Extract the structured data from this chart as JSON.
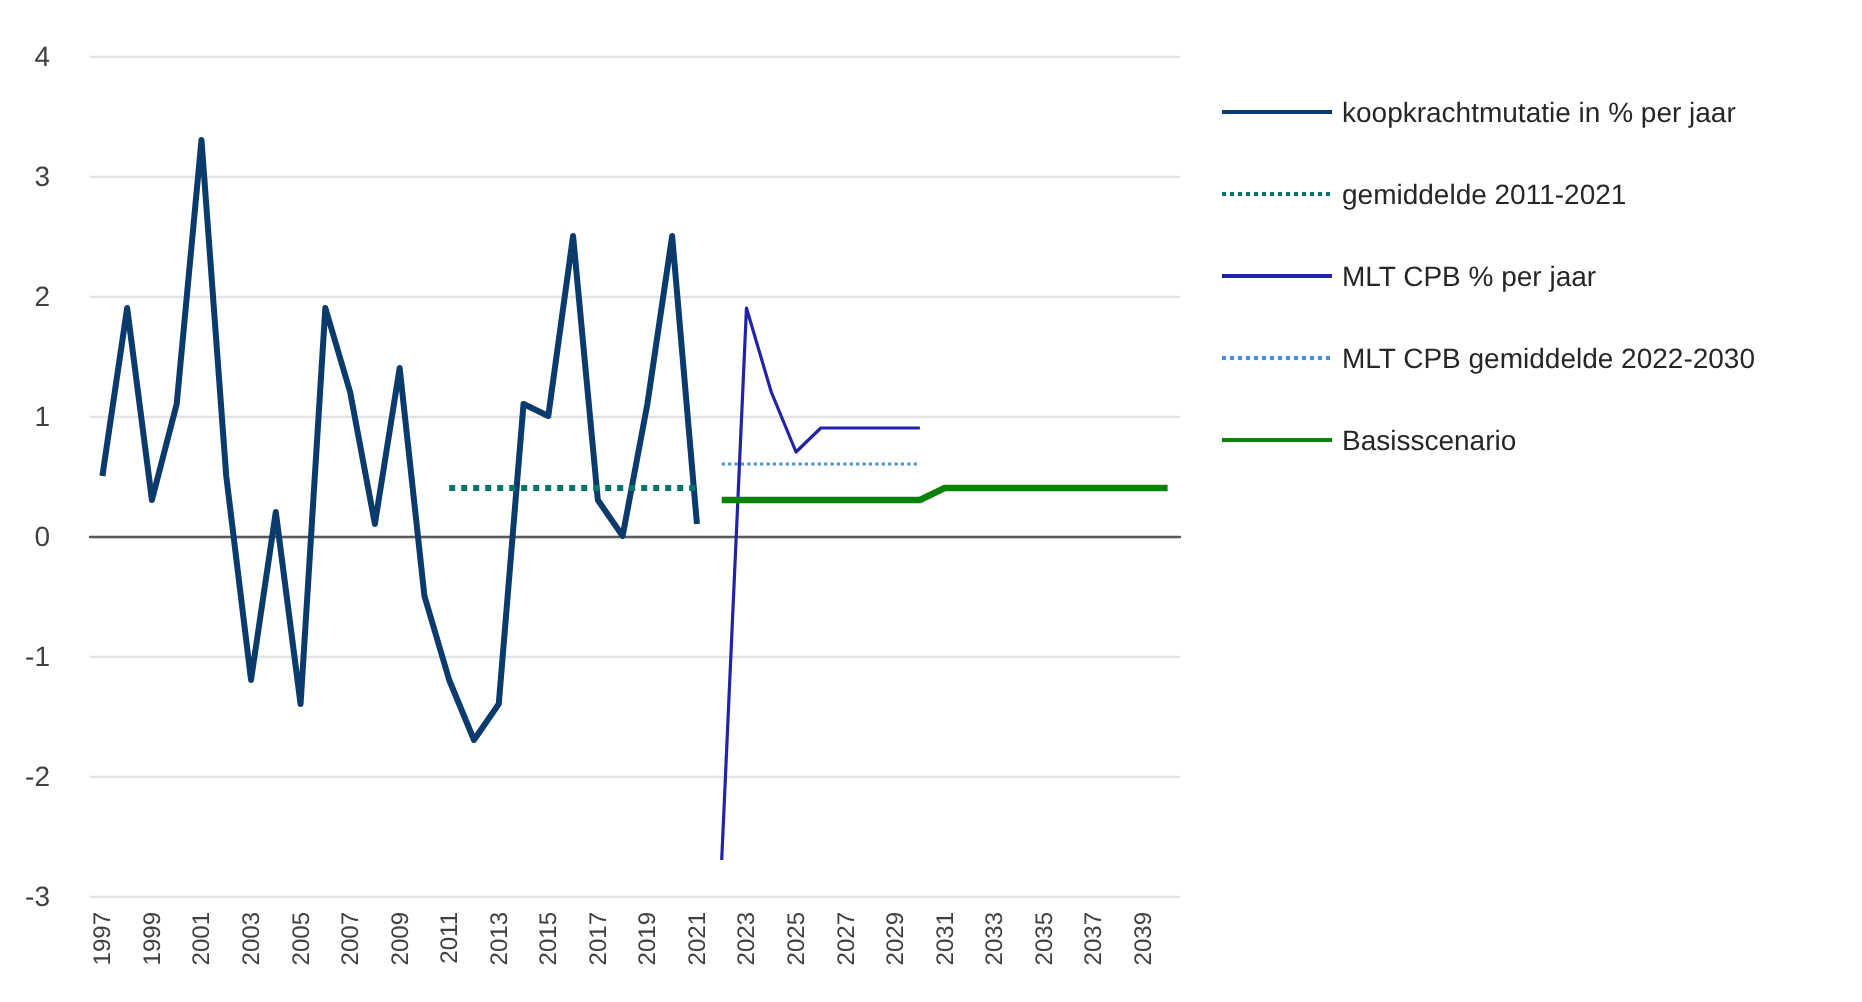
{
  "chart_data": {
    "type": "line",
    "categories": [
      "1997",
      null,
      "1999",
      null,
      "2001",
      null,
      "2003",
      null,
      "2005",
      null,
      "2007",
      null,
      "2009",
      null,
      "2011",
      null,
      "2013",
      null,
      "2015",
      null,
      "2017",
      null,
      "2019",
      null,
      "2021",
      null,
      "2023",
      null,
      "2025",
      null,
      "2027",
      null,
      "2029",
      null,
      "2031",
      null,
      "2033",
      null,
      "2035",
      null,
      "2037",
      null,
      "2039",
      null
    ],
    "ylim": [
      -3,
      4
    ],
    "yticks": [
      -3,
      -2,
      -1,
      0,
      1,
      2,
      3,
      4
    ],
    "grid": "y",
    "legend": "right",
    "marker": "none",
    "series": [
      {
        "name": "koopkrachtmutatie in % per jaar",
        "color": "#0b3b6c",
        "line_style": "solid",
        "values": [
          0.5,
          1.9,
          0.3,
          1.1,
          3.3,
          0.5,
          -1.2,
          0.2,
          -1.4,
          1.9,
          1.2,
          0.1,
          1.4,
          -0.5,
          -1.2,
          -1.7,
          -1.4,
          1.1,
          1.0,
          2.5,
          0.3,
          0.0,
          1.1,
          2.5,
          0.1,
          null,
          null,
          null,
          null,
          null,
          null,
          null,
          null,
          null,
          null,
          null,
          null,
          null,
          null,
          null,
          null,
          null,
          null,
          null
        ]
      },
      {
        "name": "gemiddelde 2011-2021",
        "color": "#00756e",
        "line_style": "dotted",
        "values": [
          null,
          null,
          null,
          null,
          null,
          null,
          null,
          null,
          null,
          null,
          null,
          null,
          null,
          null,
          0.4,
          0.4,
          0.4,
          0.4,
          0.4,
          0.4,
          0.4,
          0.4,
          0.4,
          0.4,
          0.4,
          null,
          null,
          null,
          null,
          null,
          null,
          null,
          null,
          null,
          null,
          null,
          null,
          null,
          null,
          null,
          null,
          null,
          null,
          null
        ]
      },
      {
        "name": "MLT CPB % per jaar",
        "color": "#2323a8",
        "line_style": "solid",
        "values": [
          null,
          null,
          null,
          null,
          null,
          null,
          null,
          null,
          null,
          null,
          null,
          null,
          null,
          null,
          null,
          null,
          null,
          null,
          null,
          null,
          null,
          null,
          null,
          null,
          null,
          -2.7,
          1.9,
          1.2,
          0.7,
          0.9,
          0.9,
          0.9,
          0.9,
          0.9,
          null,
          null,
          null,
          null,
          null,
          null,
          null,
          null,
          null,
          null
        ]
      },
      {
        "name": "MLT CPB gemiddelde 2022-2030",
        "color": "#4a8fd6",
        "line_style": "dotted",
        "values": [
          null,
          null,
          null,
          null,
          null,
          null,
          null,
          null,
          null,
          null,
          null,
          null,
          null,
          null,
          null,
          null,
          null,
          null,
          null,
          null,
          null,
          null,
          null,
          null,
          null,
          0.6,
          0.6,
          0.6,
          0.6,
          0.6,
          0.6,
          0.6,
          0.6,
          0.6,
          null,
          null,
          null,
          null,
          null,
          null,
          null,
          null,
          null,
          null
        ]
      },
      {
        "name": "Basisscenario",
        "color": "#0a820a",
        "line_style": "solid",
        "values": [
          null,
          null,
          null,
          null,
          null,
          null,
          null,
          null,
          null,
          null,
          null,
          null,
          null,
          null,
          null,
          null,
          null,
          null,
          null,
          null,
          null,
          null,
          null,
          null,
          null,
          0.3,
          0.3,
          0.3,
          0.3,
          0.3,
          0.3,
          0.3,
          0.3,
          0.3,
          0.4,
          0.4,
          0.4,
          0.4,
          0.4,
          0.4,
          0.4,
          0.4,
          0.4,
          0.4
        ]
      }
    ]
  }
}
